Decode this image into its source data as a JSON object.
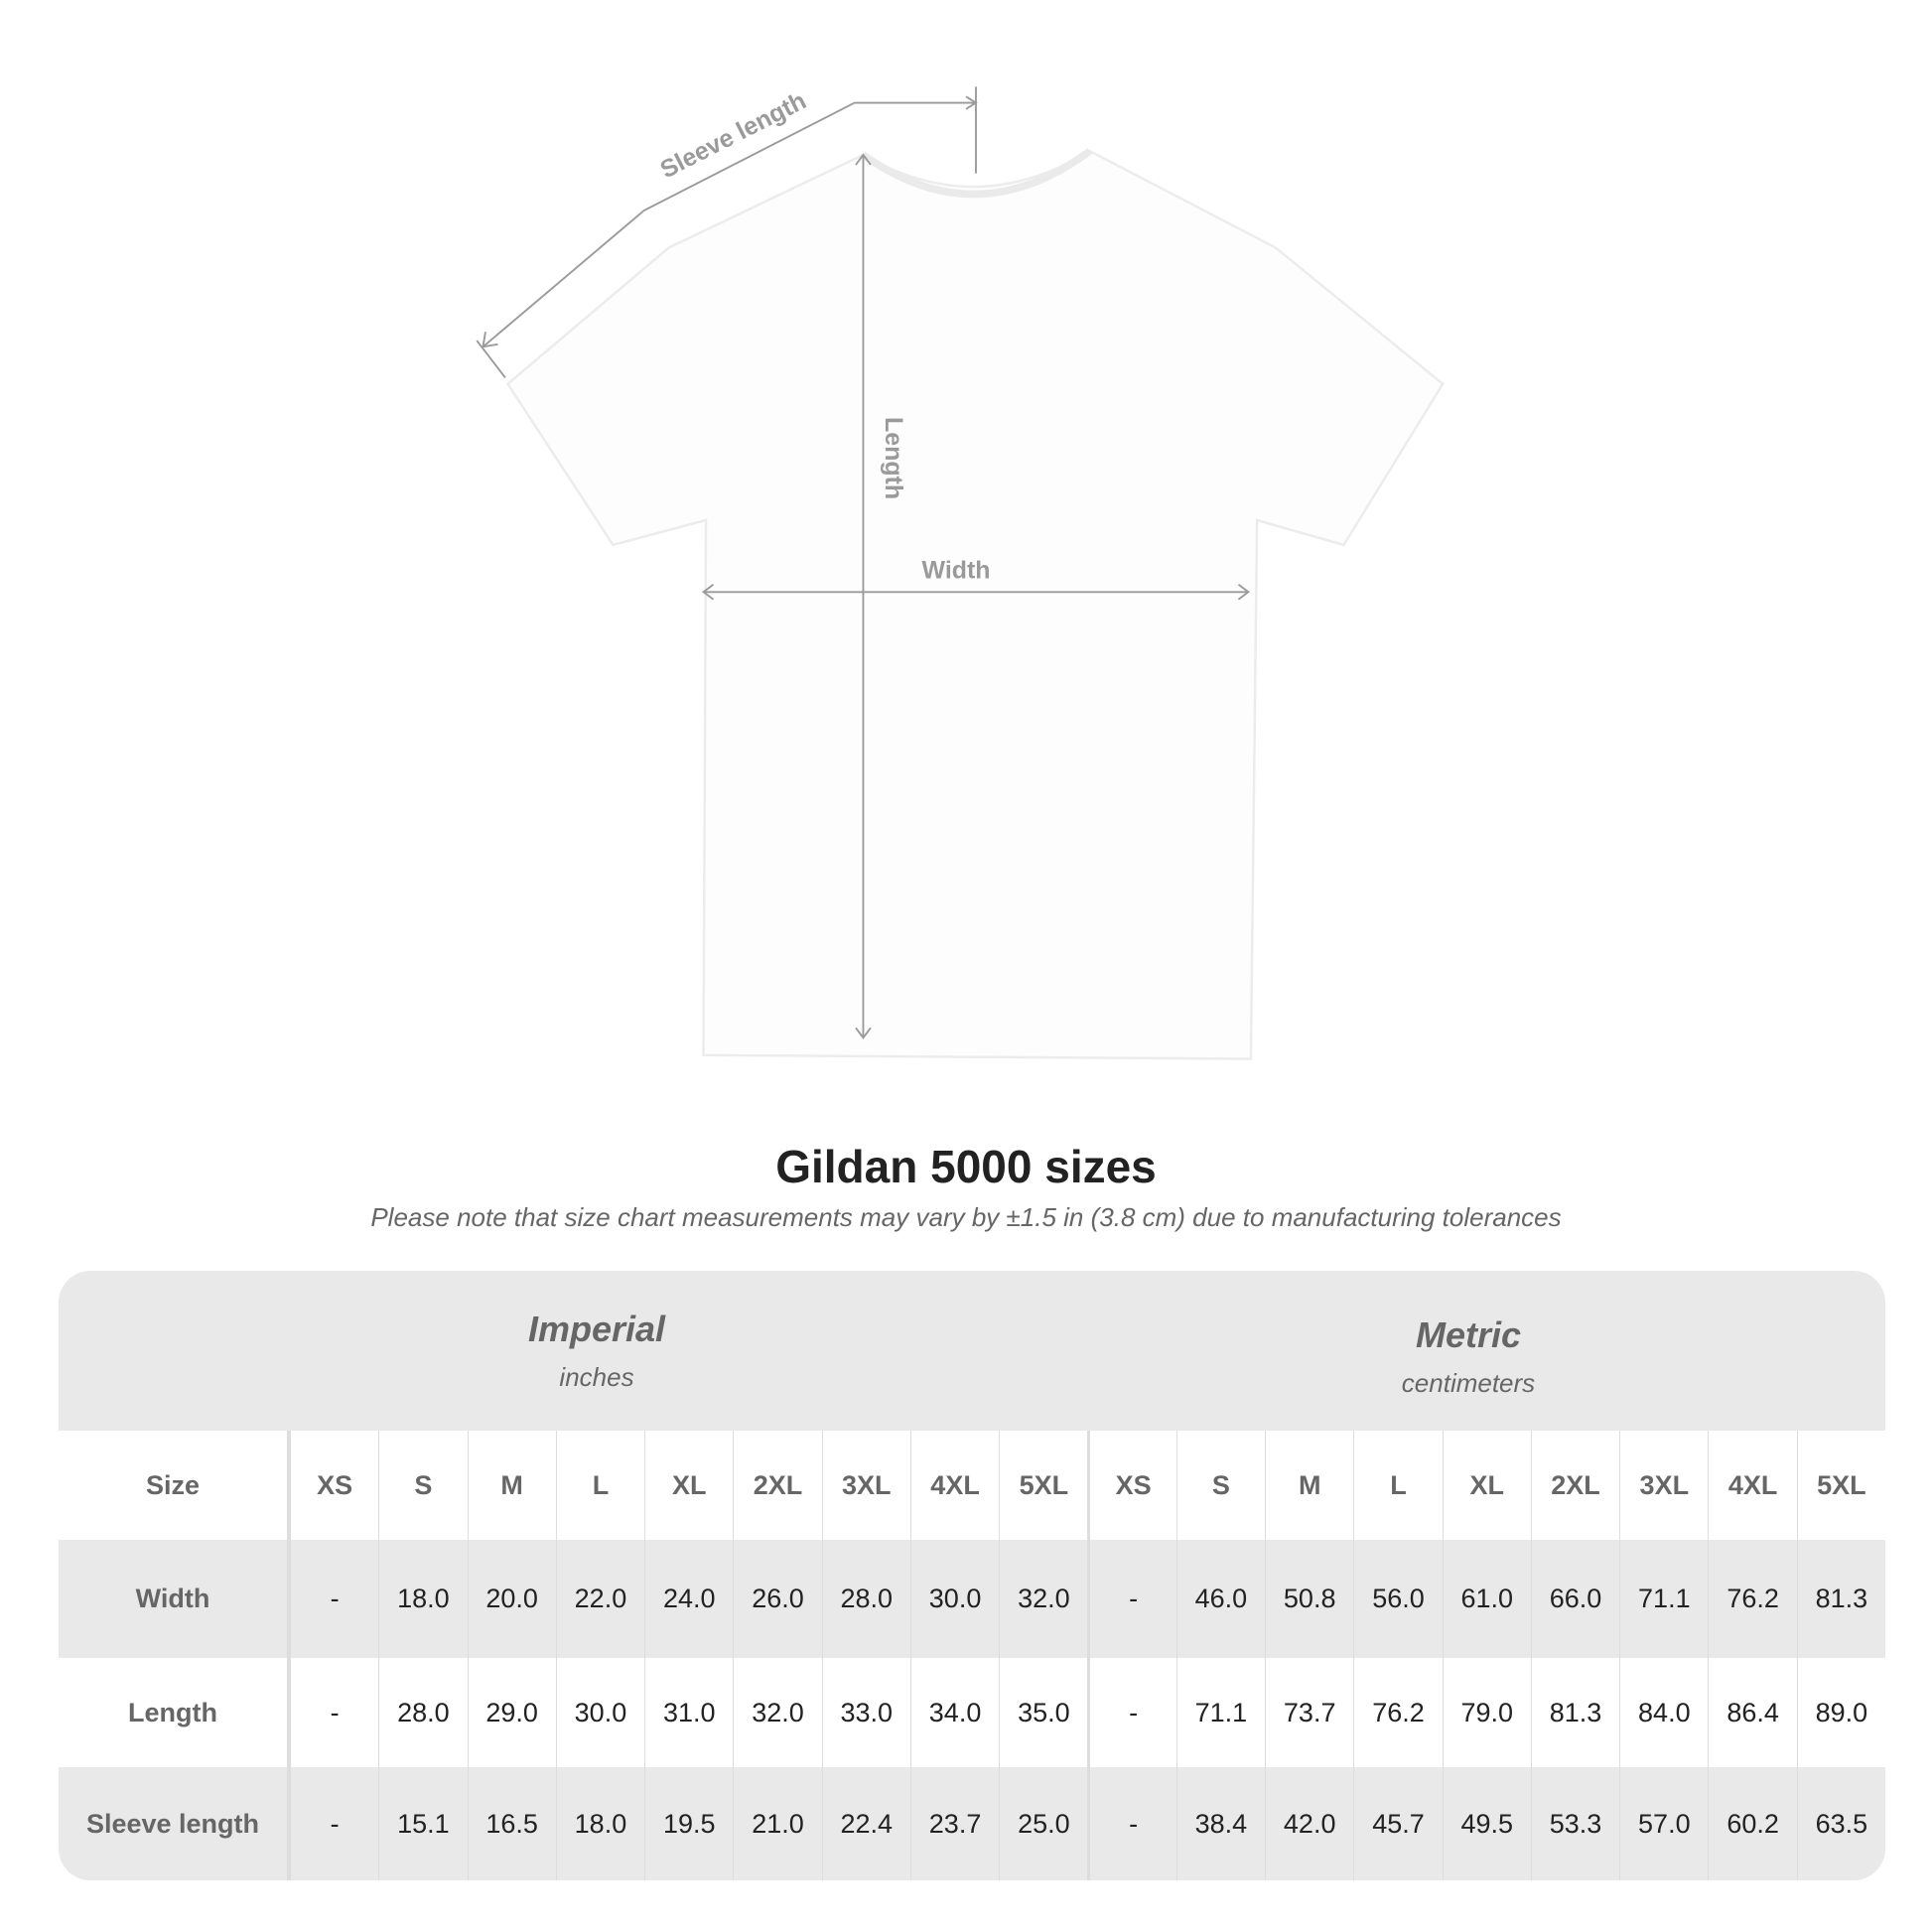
{
  "diagram": {
    "labels": {
      "sleeve": "Sleeve length",
      "length": "Length",
      "width": "Width"
    },
    "colors": {
      "shirt": "#ffffff",
      "lines": "#9a9a9a"
    }
  },
  "title": "Gildan 5000 sizes",
  "note": "Please note that size chart measurements may vary by ±1.5 in (3.8 cm) due to manufacturing tolerances",
  "table": {
    "imperial": {
      "name": "Imperial",
      "unit": "inches"
    },
    "metric": {
      "name": "Metric",
      "unit": "centimeters"
    },
    "size_label": "Size",
    "sizes": [
      "XS",
      "S",
      "M",
      "L",
      "XL",
      "2XL",
      "3XL",
      "4XL",
      "5XL"
    ],
    "rows": [
      {
        "label": "Width",
        "imperial": [
          "-",
          "18.0",
          "20.0",
          "22.0",
          "24.0",
          "26.0",
          "28.0",
          "30.0",
          "32.0"
        ],
        "metric": [
          "-",
          "46.0",
          "50.8",
          "56.0",
          "61.0",
          "66.0",
          "71.1",
          "76.2",
          "81.3"
        ]
      },
      {
        "label": "Length",
        "imperial": [
          "-",
          "28.0",
          "29.0",
          "30.0",
          "31.0",
          "32.0",
          "33.0",
          "34.0",
          "35.0"
        ],
        "metric": [
          "-",
          "71.1",
          "73.7",
          "76.2",
          "79.0",
          "81.3",
          "84.0",
          "86.4",
          "89.0"
        ]
      },
      {
        "label": "Sleeve length",
        "imperial": [
          "-",
          "15.1",
          "16.5",
          "18.0",
          "19.5",
          "21.0",
          "22.4",
          "23.7",
          "25.0"
        ],
        "metric": [
          "-",
          "38.4",
          "42.0",
          "45.7",
          "49.5",
          "53.3",
          "57.0",
          "60.2",
          "63.5"
        ]
      }
    ],
    "colors": {
      "band": "#e9e9e9",
      "header_text": "#666666",
      "value_text": "#222222"
    }
  }
}
